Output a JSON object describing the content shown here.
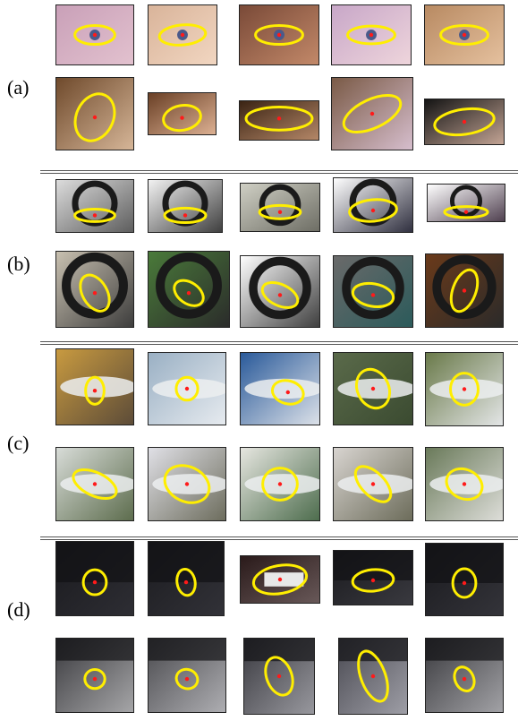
{
  "figure": {
    "groups": [
      {
        "label": "(a)",
        "subject": "eye-and-hair",
        "rows": [
          [
            {
              "bg": [
                "#c9a0b8",
                "#e3c2cf"
              ],
              "feature": "eye"
            },
            {
              "bg": [
                "#d9b49a",
                "#f2d7c2"
              ],
              "feature": "eye"
            },
            {
              "bg": [
                "#7a4a38",
                "#c48a6a"
              ],
              "feature": "eye"
            },
            {
              "bg": [
                "#c8a7c8",
                "#efd6dc"
              ],
              "feature": "eye"
            },
            {
              "bg": [
                "#b88a62",
                "#e6c2a0"
              ],
              "feature": "eye"
            }
          ],
          [
            {
              "bg": [
                "#6f4a2c",
                "#d8b89a"
              ],
              "feature": "hair"
            },
            {
              "bg": [
                "#6a4026",
                "#e0b496"
              ],
              "feature": "hair"
            },
            {
              "bg": [
                "#3b2414",
                "#b88a6a"
              ],
              "feature": "hair"
            },
            {
              "bg": [
                "#7a5a46",
                "#d8c0d0"
              ],
              "feature": "hair"
            },
            {
              "bg": [
                "#141414",
                "#c8a898"
              ],
              "feature": "hair"
            }
          ]
        ]
      },
      {
        "label": "(b)",
        "subject": "motorbike-wheel",
        "rows": [
          [
            {
              "bg": [
                "#dcdcdc",
                "#5a5a5a"
              ],
              "feature": "wheel"
            },
            {
              "bg": [
                "#f2f2f2",
                "#3a3a3a"
              ],
              "feature": "wheel"
            },
            {
              "bg": [
                "#cfcfc4",
                "#6b6b62"
              ],
              "feature": "wheel"
            },
            {
              "bg": [
                "#ffffff",
                "#2a2a3a"
              ],
              "feature": "wheel"
            },
            {
              "bg": [
                "#ffffff",
                "#4a3a4a"
              ],
              "feature": "wheel"
            }
          ],
          [
            {
              "bg": [
                "#c8c0b0",
                "#3a3a3a"
              ],
              "feature": "wheel"
            },
            {
              "bg": [
                "#4a7a3a",
                "#2a2a2a"
              ],
              "feature": "wheel"
            },
            {
              "bg": [
                "#ffffff",
                "#3a3a3a"
              ],
              "feature": "wheel"
            },
            {
              "bg": [
                "#6a6a6a",
                "#2a5a5a"
              ],
              "feature": "wheel"
            },
            {
              "bg": [
                "#6a3a1a",
                "#2a2a2a"
              ],
              "feature": "wheel"
            }
          ]
        ]
      },
      {
        "label": "(c)",
        "subject": "airplane-nose",
        "rows": [
          [
            {
              "bg": [
                "#c89a40",
                "#5a4a38"
              ],
              "feature": "plane"
            },
            {
              "bg": [
                "#9ab0c4",
                "#e8ecf0"
              ],
              "feature": "plane"
            },
            {
              "bg": [
                "#2a5a9a",
                "#e0e4ea"
              ],
              "feature": "plane"
            },
            {
              "bg": [
                "#5a6a4a",
                "#3a4a30"
              ],
              "feature": "plane"
            },
            {
              "bg": [
                "#6a7a4a",
                "#e6e8ea"
              ],
              "feature": "plane"
            }
          ],
          [
            {
              "bg": [
                "#d8dcd8",
                "#5a6a4a"
              ],
              "feature": "plane"
            },
            {
              "bg": [
                "#e0e0e6",
                "#6a6a5a"
              ],
              "feature": "plane"
            },
            {
              "bg": [
                "#e6e6e0",
                "#4a6a4a"
              ],
              "feature": "plane"
            },
            {
              "bg": [
                "#d8d4d0",
                "#6a6a58"
              ],
              "feature": "plane"
            },
            {
              "bg": [
                "#6a7a5a",
                "#e0e0dc"
              ],
              "feature": "plane"
            }
          ]
        ]
      },
      {
        "label": "(d)",
        "subject": "car-rear",
        "rows": [
          [
            {
              "bg": [
                "#1a1a1e",
                "#2e2e34"
              ],
              "feature": "car"
            },
            {
              "bg": [
                "#1c1c20",
                "#323238"
              ],
              "feature": "car"
            },
            {
              "bg": [
                "#2a1a1a",
                "#6a5a5a"
              ],
              "feature": "plate"
            },
            {
              "bg": [
                "#1a1a1e",
                "#3a3a40"
              ],
              "feature": "car"
            },
            {
              "bg": [
                "#1a1a1e",
                "#34343a"
              ],
              "feature": "car"
            }
          ],
          [
            {
              "bg": [
                "#3a3a3e",
                "#a8a8aa"
              ],
              "feature": "road"
            },
            {
              "bg": [
                "#4a4a4e",
                "#b0b0b4"
              ],
              "feature": "road"
            },
            {
              "bg": [
                "#3a3a40",
                "#9a9aa0"
              ],
              "feature": "road"
            },
            {
              "bg": [
                "#4a4a52",
                "#a0a0a8"
              ],
              "feature": "road"
            },
            {
              "bg": [
                "#3a3a3e",
                "#a4a4a8"
              ],
              "feature": "road"
            }
          ]
        ]
      }
    ],
    "colors": {
      "ellipse": "#ffee00",
      "center_point": "#ff1a1a",
      "divider": "#555555",
      "thumb_border": "#222222"
    }
  }
}
